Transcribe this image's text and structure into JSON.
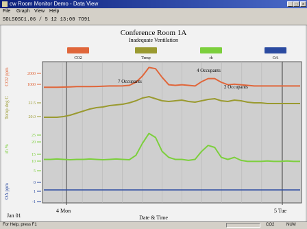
{
  "window": {
    "title": "cw Room Monitor Demo - Data View",
    "buttons": [
      "_",
      "□",
      "×"
    ]
  },
  "menu": [
    "File",
    "Graph",
    "View",
    "Help"
  ],
  "toolbar": {
    "text": "SOLSOSC1.06 / 5 12 13:00 7O91"
  },
  "chart_data": {
    "type": "line",
    "title": "Conference Room 1A",
    "subtitle": "Inadequate Ventilation",
    "xlabel": "Date & Time",
    "x_ticks": [
      "4 Mon",
      "5 Tue"
    ],
    "corner_label": "Jan 01",
    "legend": [
      {
        "name": "CO2",
        "color": "#e0663a"
      },
      {
        "name": "Temp",
        "color": "#9a9a30"
      },
      {
        "name": "rh",
        "color": "#7ccf3c"
      },
      {
        "name": "OA",
        "color": "#2a4aa0"
      }
    ],
    "axes": [
      {
        "label": "CO2 ppm",
        "color": "#e0663a",
        "ticks": [
          "2000",
          "1000"
        ]
      },
      {
        "label": "Temp deg C",
        "color": "#9a9a30",
        "ticks": [
          "22.5",
          "20.0"
        ]
      },
      {
        "label": "rh %",
        "color": "#7ccf3c",
        "ticks": [
          "25",
          "20",
          "15",
          "10",
          "5"
        ]
      },
      {
        "label": "OA ppm",
        "color": "#2a4aa0",
        "ticks": [
          "1",
          "0",
          "-1"
        ]
      }
    ],
    "annotations": [
      "7 Occupants",
      "4 Occupants",
      "2 Occupants"
    ],
    "series": [
      {
        "name": "CO2",
        "color": "#e0663a",
        "values": [
          900,
          900,
          900,
          910,
          930,
          950,
          950,
          950,
          960,
          980,
          1000,
          1000,
          1010,
          1050,
          1300,
          1800,
          2500,
          2400,
          1700,
          1100,
          1050,
          1100,
          1050,
          1000,
          1350,
          1600,
          1600,
          1300,
          1100,
          1150,
          1100,
          1050,
          1000,
          1000,
          1000,
          1000,
          1000,
          1000,
          1000,
          1000
        ]
      },
      {
        "name": "Temp",
        "color": "#9a9a30",
        "values": [
          19.6,
          19.6,
          19.6,
          19.7,
          19.9,
          20.2,
          20.5,
          20.8,
          21.0,
          21.1,
          21.3,
          21.4,
          21.5,
          21.7,
          22.0,
          22.4,
          22.6,
          22.3,
          22.0,
          21.9,
          22.0,
          22.1,
          21.9,
          21.8,
          22.0,
          22.2,
          22.3,
          22.0,
          21.9,
          22.1,
          22.0,
          21.8,
          21.7,
          21.7,
          21.6,
          21.6,
          21.6,
          21.6,
          21.6,
          21.6
        ]
      },
      {
        "name": "rh",
        "color": "#7ccf3c",
        "values": [
          10,
          10,
          10.2,
          10,
          9.8,
          10,
          10,
          10.2,
          10,
          9.8,
          10,
          10.2,
          10,
          9.8,
          12,
          18,
          23,
          21,
          14,
          11,
          10,
          10,
          9.5,
          10,
          14,
          17,
          16,
          11,
          10,
          11,
          9.5,
          9,
          9,
          9,
          9.2,
          9,
          9,
          9.2,
          9,
          9
        ]
      },
      {
        "name": "OA",
        "color": "#2a4aa0",
        "values": [
          0,
          0,
          0,
          0,
          0,
          0,
          0,
          0,
          0,
          0,
          0,
          0,
          0,
          0,
          0,
          0,
          0,
          0,
          0,
          0,
          0,
          0,
          0,
          0,
          0,
          0,
          0,
          0,
          0,
          0,
          0,
          0,
          0,
          0,
          0,
          0,
          0,
          0,
          0,
          0
        ]
      }
    ]
  },
  "status": {
    "left": "For Help, press F1",
    "right": [
      "CO2",
      "NUM"
    ]
  }
}
